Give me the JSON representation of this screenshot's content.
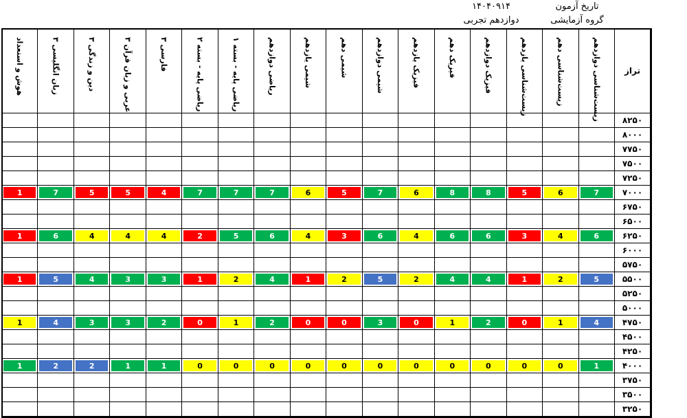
{
  "header": {
    "exam_date_label": "تاریخ آزمون",
    "exam_date": "۱۴۰۴۰۹۱۴",
    "group_label": "گروه آزمایشی",
    "group": "دوازدهم تجربی"
  },
  "table": {
    "level_header": "تراز",
    "columns": [
      "هوش و استعداد",
      "زبان انگلیسی ۳",
      "دین و زندگی ۳",
      "عربی و زبان قرآن ۳",
      "فارسی ۳",
      "ریاضی پایه - بسته ۲",
      "ریاضی پایه - بسته ۱",
      "ریاضی دوازدهم",
      "شیمی یازدهم",
      "شیمی دهم",
      "شیمی دوازدهم",
      "فیزیک یازدهم",
      "فیزیک دهم",
      "فیزیک دوازدهم",
      "زیست‌شناسی یازدهم",
      "زیست‌شناسی دهم",
      "زیست‌شناسی دوازدهم"
    ],
    "colors": {
      "red": "#ff0000",
      "green": "#00b050",
      "yellow": "#ffff00",
      "blue": "#4472c4"
    },
    "rows": [
      {
        "label": "۸۲۵۰"
      },
      {
        "label": "۸۰۰۰"
      },
      {
        "label": "۷۷۵۰"
      },
      {
        "label": "۷۵۰۰"
      },
      {
        "label": "۷۲۵۰"
      },
      {
        "label": "۷۰۰۰",
        "cells": [
          {
            "value": 1,
            "color": "red"
          },
          {
            "value": 7,
            "color": "green"
          },
          {
            "value": 5,
            "color": "red"
          },
          {
            "value": 5,
            "color": "red"
          },
          {
            "value": 4,
            "color": "red"
          },
          {
            "value": 7,
            "color": "green"
          },
          {
            "value": 7,
            "color": "green"
          },
          {
            "value": 7,
            "color": "green"
          },
          {
            "value": 6,
            "color": "yellow"
          },
          {
            "value": 5,
            "color": "red"
          },
          {
            "value": 7,
            "color": "green"
          },
          {
            "value": 6,
            "color": "yellow"
          },
          {
            "value": 8,
            "color": "green"
          },
          {
            "value": 8,
            "color": "green"
          },
          {
            "value": 5,
            "color": "red"
          },
          {
            "value": 6,
            "color": "yellow"
          },
          {
            "value": 7,
            "color": "green"
          }
        ]
      },
      {
        "label": "۶۷۵۰"
      },
      {
        "label": "۶۵۰۰"
      },
      {
        "label": "۶۲۵۰",
        "cells": [
          {
            "value": 1,
            "color": "red"
          },
          {
            "value": 6,
            "color": "green"
          },
          {
            "value": 4,
            "color": "yellow"
          },
          {
            "value": 4,
            "color": "yellow"
          },
          {
            "value": 4,
            "color": "yellow"
          },
          {
            "value": 2,
            "color": "red"
          },
          {
            "value": 5,
            "color": "green"
          },
          {
            "value": 6,
            "color": "green"
          },
          {
            "value": 4,
            "color": "yellow"
          },
          {
            "value": 3,
            "color": "red"
          },
          {
            "value": 6,
            "color": "green"
          },
          {
            "value": 4,
            "color": "yellow"
          },
          {
            "value": 6,
            "color": "green"
          },
          {
            "value": 6,
            "color": "green"
          },
          {
            "value": 3,
            "color": "red"
          },
          {
            "value": 4,
            "color": "yellow"
          },
          {
            "value": 6,
            "color": "green"
          }
        ]
      },
      {
        "label": "۶۰۰۰"
      },
      {
        "label": "۵۷۵۰"
      },
      {
        "label": "۵۵۰۰",
        "cells": [
          {
            "value": 1,
            "color": "red"
          },
          {
            "value": 5,
            "color": "blue"
          },
          {
            "value": 4,
            "color": "green"
          },
          {
            "value": 3,
            "color": "green"
          },
          {
            "value": 3,
            "color": "green"
          },
          {
            "value": 1,
            "color": "red"
          },
          {
            "value": 2,
            "color": "yellow"
          },
          {
            "value": 4,
            "color": "green"
          },
          {
            "value": 1,
            "color": "red"
          },
          {
            "value": 2,
            "color": "yellow"
          },
          {
            "value": 5,
            "color": "blue"
          },
          {
            "value": 2,
            "color": "yellow"
          },
          {
            "value": 4,
            "color": "green"
          },
          {
            "value": 4,
            "color": "green"
          },
          {
            "value": 1,
            "color": "red"
          },
          {
            "value": 2,
            "color": "yellow"
          },
          {
            "value": 5,
            "color": "blue"
          }
        ]
      },
      {
        "label": "۵۲۵۰"
      },
      {
        "label": "۵۰۰۰"
      },
      {
        "label": "۴۷۵۰",
        "cells": [
          {
            "value": 1,
            "color": "yellow"
          },
          {
            "value": 4,
            "color": "blue"
          },
          {
            "value": 3,
            "color": "green"
          },
          {
            "value": 3,
            "color": "green"
          },
          {
            "value": 2,
            "color": "green"
          },
          {
            "value": 0,
            "color": "red"
          },
          {
            "value": 1,
            "color": "yellow"
          },
          {
            "value": 2,
            "color": "green"
          },
          {
            "value": 0,
            "color": "red"
          },
          {
            "value": 0,
            "color": "red"
          },
          {
            "value": 3,
            "color": "green"
          },
          {
            "value": 0,
            "color": "red"
          },
          {
            "value": 1,
            "color": "yellow"
          },
          {
            "value": 2,
            "color": "green"
          },
          {
            "value": 0,
            "color": "red"
          },
          {
            "value": 1,
            "color": "yellow"
          },
          {
            "value": 4,
            "color": "blue"
          }
        ]
      },
      {
        "label": "۴۵۰۰"
      },
      {
        "label": "۴۲۵۰"
      },
      {
        "label": "۴۰۰۰",
        "cells": [
          {
            "value": 1,
            "color": "green"
          },
          {
            "value": 2,
            "color": "blue"
          },
          {
            "value": 2,
            "color": "blue"
          },
          {
            "value": 1,
            "color": "green"
          },
          {
            "value": 1,
            "color": "green"
          },
          {
            "value": 0,
            "color": "yellow"
          },
          {
            "value": 0,
            "color": "yellow"
          },
          {
            "value": 0,
            "color": "yellow"
          },
          {
            "value": 0,
            "color": "yellow"
          },
          {
            "value": 0,
            "color": "yellow"
          },
          {
            "value": 0,
            "color": "yellow"
          },
          {
            "value": 0,
            "color": "yellow"
          },
          {
            "value": 0,
            "color": "yellow"
          },
          {
            "value": 0,
            "color": "yellow"
          },
          {
            "value": 0,
            "color": "yellow"
          },
          {
            "value": 0,
            "color": "yellow"
          },
          {
            "value": 1,
            "color": "green"
          }
        ]
      },
      {
        "label": "۳۷۵۰"
      },
      {
        "label": "۳۵۰۰"
      },
      {
        "label": "۳۲۵۰"
      }
    ]
  }
}
